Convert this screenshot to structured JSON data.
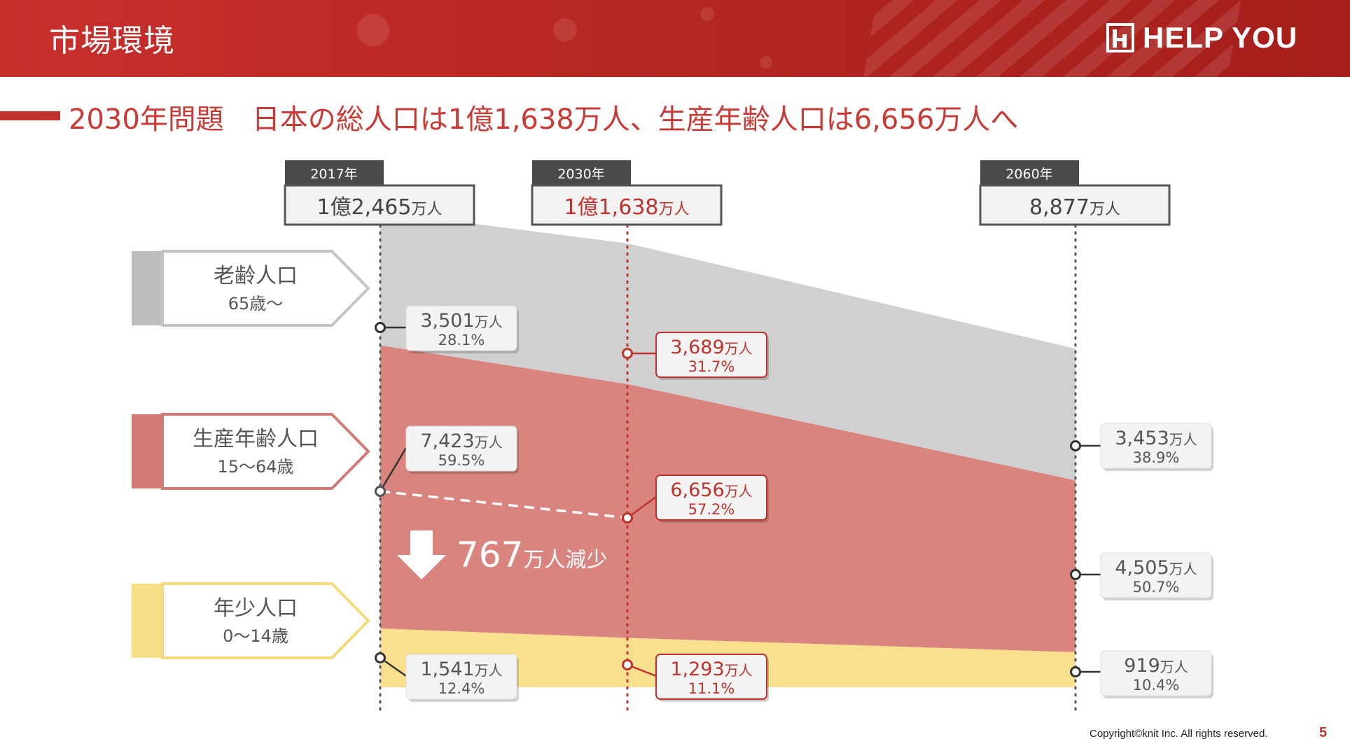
{
  "header": {
    "title": "市場環境",
    "logo_text": "HELP YOU"
  },
  "subtitle": "2030年問題　日本の総人口は1億1,638万人、生産年齢人口は6,656万人へ",
  "colors": {
    "accent": "#c0322c",
    "elderly": "#d0d0d0",
    "working": "#da8480",
    "youth": "#f9e08e",
    "dark": "#555555"
  },
  "years": [
    {
      "year": "2017年",
      "total_main": "1億2,465",
      "total_unit": "万人",
      "highlight": false
    },
    {
      "year": "2030年",
      "total_main": "1億1,638",
      "total_unit": "万人",
      "highlight": true
    },
    {
      "year": "2060年",
      "total_main": "8,877",
      "total_unit": "万人",
      "highlight": false
    }
  ],
  "categories": [
    {
      "name": "老齢人口",
      "range": "65歳〜",
      "color": "#bcbcbc",
      "outline": "#c4c4c4"
    },
    {
      "name": "生産年齢人口",
      "range": "15〜64歳",
      "color": "#d27a75",
      "outline": "#d27a75"
    },
    {
      "name": "年少人口",
      "range": "0〜14歳",
      "color": "#f8de86",
      "outline": "#f5d97a"
    }
  ],
  "decrease": {
    "value": "767",
    "unit": "万人減少"
  },
  "chart_data": {
    "type": "area",
    "x": [
      "2017年",
      "2030年",
      "2060年"
    ],
    "units": "万人",
    "series": [
      {
        "name": "年少人口",
        "values": [
          1541,
          1293,
          919
        ],
        "labels": [
          "1,541",
          "1,293",
          "919"
        ],
        "percent": [
          "12.4%",
          "11.1%",
          "10.4%"
        ]
      },
      {
        "name": "生産年齢人口",
        "values": [
          7423,
          6656,
          4505
        ],
        "labels": [
          "7,423",
          "6,656",
          "4,505"
        ],
        "percent": [
          "59.5%",
          "57.2%",
          "50.7%"
        ]
      },
      {
        "name": "老齢人口",
        "values": [
          3501,
          3689,
          3453
        ],
        "labels": [
          "3,501",
          "3,689",
          "3,453"
        ],
        "percent": [
          "28.1%",
          "31.7%",
          "38.9%"
        ]
      }
    ],
    "totals": [
      "1億2,465万人",
      "1億1,638万人",
      "8,877万人"
    ]
  },
  "footer": {
    "copyright": "Copyright©knit Inc. All rights reserved.",
    "page": "5"
  }
}
